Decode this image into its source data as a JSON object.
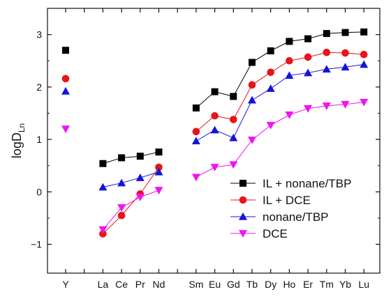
{
  "chart_data": {
    "type": "line",
    "ylabel_main": "logD",
    "ylabel_sub": "Ln",
    "categories": [
      "Y",
      "",
      "La",
      "Ce",
      "Pr",
      "Nd",
      "",
      "Sm",
      "Eu",
      "Gd",
      "Tb",
      "Dy",
      "Ho",
      "Er",
      "Tm",
      "Yb",
      "Lu"
    ],
    "ylim": [
      -1.55,
      3.5
    ],
    "yticks": [
      -1,
      0,
      1,
      2,
      3
    ],
    "ytick_labels": [
      "−1",
      "0",
      "1",
      "2",
      "3"
    ],
    "grid": false,
    "legend_position": "bottom-right",
    "line_groups": [
      [
        2,
        5
      ],
      [
        7,
        16
      ]
    ],
    "series": [
      {
        "name": "IL + nonane/TBP",
        "color": "#000000",
        "marker": "square",
        "values": [
          2.7,
          null,
          0.54,
          0.65,
          0.68,
          0.76,
          null,
          1.6,
          1.91,
          1.82,
          2.47,
          2.69,
          2.87,
          2.92,
          3.02,
          3.04,
          3.05
        ]
      },
      {
        "name": "IL + DCE",
        "color": "#e8141b",
        "marker": "circle",
        "values": [
          2.16,
          null,
          -0.8,
          -0.45,
          -0.04,
          0.47,
          null,
          1.15,
          1.45,
          1.38,
          2.04,
          2.28,
          2.5,
          2.57,
          2.66,
          2.65,
          2.62
        ]
      },
      {
        "name": "nonane/TBP",
        "color": "#1414d8",
        "marker": "triangle-up",
        "values": [
          1.92,
          null,
          0.09,
          0.17,
          0.27,
          0.38,
          null,
          0.97,
          1.18,
          1.03,
          1.75,
          1.97,
          2.22,
          2.27,
          2.34,
          2.38,
          2.43
        ]
      },
      {
        "name": "DCE",
        "color": "#f014f0",
        "marker": "triangle-down",
        "values": [
          1.2,
          null,
          -0.72,
          -0.3,
          -0.1,
          0.03,
          null,
          0.28,
          0.47,
          0.52,
          0.99,
          1.27,
          1.47,
          1.59,
          1.64,
          1.67,
          1.71
        ]
      }
    ]
  }
}
